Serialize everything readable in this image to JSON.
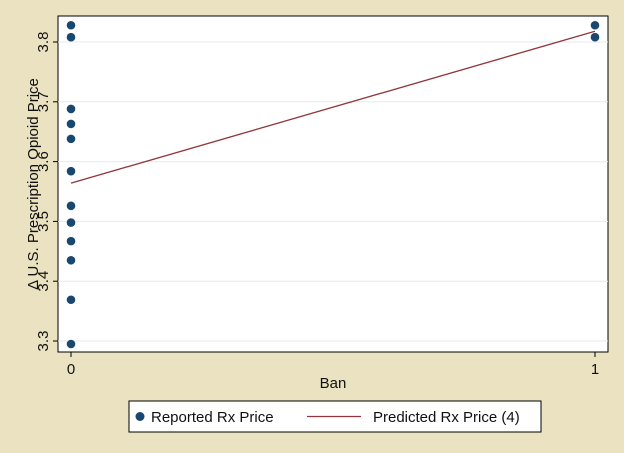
{
  "colors": {
    "background": "#eae2c0",
    "plot_background": "#ffffff",
    "gridline": "#e8e8ee",
    "marker": "#1a476f",
    "fit_line": "#90353b"
  },
  "chart_data": {
    "type": "scatter",
    "xlabel": "Ban",
    "ylabel": "Δ U.S. Prescription Opioid Price",
    "xlim": [
      0,
      1
    ],
    "ylim": [
      3.3,
      3.8
    ],
    "x_ticks": [
      0,
      1
    ],
    "y_ticks": [
      3.3,
      3.4,
      3.5,
      3.6,
      3.7,
      3.8
    ],
    "x_tick_labels": [
      "0",
      "1"
    ],
    "y_tick_labels": [
      "3.3",
      "3.4",
      "3.5",
      "3.6",
      "3.7",
      "3.8"
    ],
    "grid": true,
    "legend_position": "bottom",
    "series": [
      {
        "name": "Reported Rx Price",
        "type": "scatter",
        "marker": "circle",
        "points": [
          {
            "x": 0,
            "y": 3.828
          },
          {
            "x": 0,
            "y": 3.808
          },
          {
            "x": 0,
            "y": 3.688
          },
          {
            "x": 0,
            "y": 3.663
          },
          {
            "x": 0,
            "y": 3.638
          },
          {
            "x": 0,
            "y": 3.584
          },
          {
            "x": 0,
            "y": 3.526
          },
          {
            "x": 0,
            "y": 3.498
          },
          {
            "x": 0,
            "y": 3.467
          },
          {
            "x": 0,
            "y": 3.435
          },
          {
            "x": 0,
            "y": 3.369
          },
          {
            "x": 0,
            "y": 3.295
          },
          {
            "x": 1,
            "y": 3.828
          },
          {
            "x": 1,
            "y": 3.808
          }
        ]
      },
      {
        "name": "Predicted Rx Price (4)",
        "type": "line",
        "points": [
          {
            "x": 0,
            "y": 3.564
          },
          {
            "x": 1,
            "y": 3.818
          }
        ]
      }
    ]
  }
}
